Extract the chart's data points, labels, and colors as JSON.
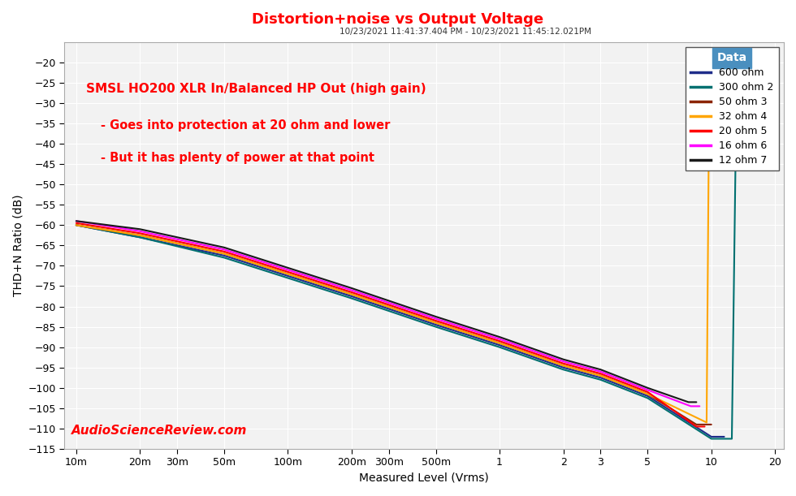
{
  "title": "Distortion+noise vs Output Voltage",
  "subtitle": "10/23/2021 11:41:37.404 PM - 10/23/2021 11:45:12.021PM",
  "xlabel": "Measured Level (Vrms)",
  "ylabel": "THD+N Ratio (dB)",
  "annotation_line1": "SMSL HO200 XLR In/Balanced HP Out (high gain)",
  "annotation_line2": "- Goes into protection at 20 ohm and lower",
  "annotation_line3": "- But it has plenty of power at that point",
  "watermark": "AudioScienceReview.com",
  "title_color": "#FF0000",
  "annotation_color": "#FF0000",
  "watermark_color": "#FF0000",
  "background_color": "#FFFFFF",
  "plot_bg_color": "#F2F2F2",
  "grid_color": "#FFFFFF",
  "ylim": [
    -115,
    -15
  ],
  "yticks": [
    -115,
    -110,
    -105,
    -100,
    -95,
    -90,
    -85,
    -80,
    -75,
    -70,
    -65,
    -60,
    -55,
    -50,
    -45,
    -40,
    -35,
    -30,
    -25,
    -20
  ],
  "series": [
    {
      "label": "600 ohm",
      "color": "#1F2D8A",
      "x": [
        0.01,
        0.02,
        0.05,
        0.1,
        0.2,
        0.5,
        1.0,
        2.0,
        3.0,
        5.0,
        10.0,
        11.5
      ],
      "y": [
        -60.0,
        -63.0,
        -67.5,
        -72.5,
        -77.5,
        -84.5,
        -89.5,
        -95.0,
        -97.5,
        -102.0,
        -112.0,
        -112.0
      ]
    },
    {
      "label": "300 ohm 2",
      "color": "#007070",
      "x": [
        0.01,
        0.02,
        0.05,
        0.1,
        0.2,
        0.5,
        1.0,
        2.0,
        3.0,
        5.0,
        10.0,
        12.5,
        13.2
      ],
      "y": [
        -60.0,
        -63.0,
        -68.0,
        -73.0,
        -78.0,
        -85.0,
        -90.0,
        -95.5,
        -98.0,
        -102.5,
        -112.5,
        -112.5,
        -20.0
      ]
    },
    {
      "label": "50 ohm 3",
      "color": "#8B2500",
      "x": [
        0.01,
        0.02,
        0.05,
        0.1,
        0.2,
        0.5,
        1.0,
        2.0,
        3.0,
        5.0,
        8.5,
        10.0
      ],
      "y": [
        -60.0,
        -62.5,
        -67.0,
        -72.0,
        -77.0,
        -84.0,
        -89.0,
        -94.5,
        -97.0,
        -101.5,
        -109.0,
        -109.0
      ]
    },
    {
      "label": "32 ohm 4",
      "color": "#FFA500",
      "x": [
        0.01,
        0.02,
        0.05,
        0.1,
        0.2,
        0.5,
        1.0,
        2.0,
        3.0,
        5.0,
        9.5,
        9.8,
        10.2
      ],
      "y": [
        -60.0,
        -62.5,
        -67.0,
        -72.0,
        -77.0,
        -84.0,
        -89.0,
        -94.5,
        -97.0,
        -101.5,
        -108.5,
        -19.0,
        -19.0
      ]
    },
    {
      "label": "20 ohm 5",
      "color": "#FF0000",
      "x": [
        0.01,
        0.02,
        0.05,
        0.1,
        0.2,
        0.5,
        1.0,
        2.0,
        3.0,
        5.0,
        8.5,
        9.3
      ],
      "y": [
        -59.5,
        -62.0,
        -66.5,
        -71.5,
        -76.5,
        -83.5,
        -88.5,
        -94.0,
        -96.5,
        -101.0,
        -109.5,
        -109.5
      ]
    },
    {
      "label": "16 ohm 6",
      "color": "#FF00FF",
      "x": [
        0.01,
        0.02,
        0.05,
        0.1,
        0.2,
        0.5,
        1.0,
        2.0,
        3.0,
        5.0,
        8.0,
        8.8
      ],
      "y": [
        -59.0,
        -61.5,
        -66.0,
        -71.0,
        -76.0,
        -83.0,
        -88.0,
        -93.5,
        -96.0,
        -100.5,
        -104.5,
        -104.5
      ]
    },
    {
      "label": "12 ohm 7",
      "color": "#1A1A1A",
      "x": [
        0.01,
        0.02,
        0.05,
        0.1,
        0.2,
        0.5,
        1.0,
        2.0,
        3.0,
        5.0,
        7.8,
        8.5
      ],
      "y": [
        -59.0,
        -61.0,
        -65.5,
        -70.5,
        -75.5,
        -82.5,
        -87.5,
        -93.0,
        -95.5,
        -100.0,
        -103.5,
        -103.5
      ]
    }
  ],
  "xticks_positions": [
    0.01,
    0.02,
    0.03,
    0.05,
    0.1,
    0.2,
    0.3,
    0.5,
    1.0,
    2.0,
    3.0,
    5.0,
    10.0,
    20.0
  ],
  "xticks_labels": [
    "10m",
    "20m",
    "30m",
    "50m",
    "100m",
    "200m",
    "300m",
    "500m",
    "1",
    "2",
    "3",
    "5",
    "10",
    "20"
  ],
  "legend_title": "Data",
  "legend_title_bg": "#4A8FBF",
  "legend_title_color": "#FFFFFF"
}
